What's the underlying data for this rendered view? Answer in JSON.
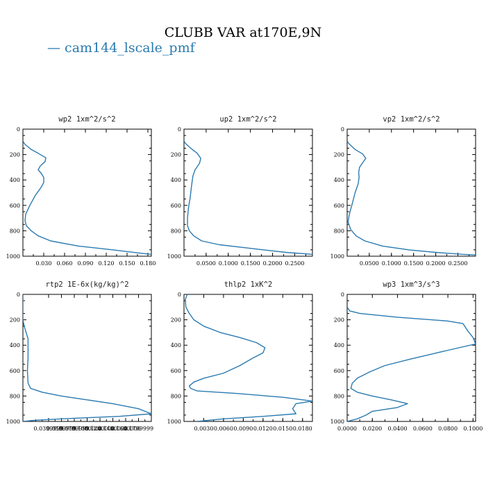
{
  "title": "CLUBB VAR at170E,9N",
  "legend": {
    "label": "cam144_lscale_pmf",
    "color": "#2a7ab0"
  },
  "chart_data": [
    {
      "type": "line",
      "title": "wp2  1xm^2/s^2",
      "xlim": [
        0,
        0.185
      ],
      "ylim": [
        0,
        1000
      ],
      "y_inverted": true,
      "xticks": [
        0.03,
        0.06,
        0.09,
        0.12,
        0.15,
        0.18
      ],
      "xtick_labels": [
        "0.030",
        "0.060",
        "0.090",
        "0.120",
        "0.150",
        "0.180"
      ],
      "yticks": [
        0,
        200,
        400,
        600,
        800,
        1000
      ],
      "series": [
        {
          "x": [
            0.0,
            0.003,
            0.012,
            0.022,
            0.033,
            0.032,
            0.025,
            0.022,
            0.026,
            0.03,
            0.03,
            0.026,
            0.018,
            0.01,
            0.004,
            0.003,
            0.005,
            0.012,
            0.022,
            0.04,
            0.08,
            0.13,
            0.175,
            0.185
          ],
          "y": [
            95,
            120,
            160,
            190,
            225,
            255,
            290,
            320,
            345,
            380,
            420,
            460,
            520,
            600,
            670,
            720,
            760,
            800,
            840,
            880,
            920,
            950,
            980,
            985
          ]
        }
      ]
    },
    {
      "type": "line",
      "title": "up2  1xm^2/s^2",
      "xlim": [
        0,
        0.29
      ],
      "ylim": [
        0,
        1000
      ],
      "y_inverted": true,
      "xticks": [
        0.05,
        0.1,
        0.15,
        0.2,
        0.25
      ],
      "xtick_labels": [
        "0.0500",
        "0.1000",
        "0.1500",
        "0.2000",
        "0.2500"
      ],
      "yticks": [
        0,
        200,
        400,
        600,
        800,
        1000
      ],
      "series": [
        {
          "x": [
            0.0,
            0.004,
            0.015,
            0.03,
            0.038,
            0.035,
            0.025,
            0.02,
            0.017,
            0.014,
            0.01,
            0.008,
            0.008,
            0.012,
            0.022,
            0.04,
            0.08,
            0.13,
            0.18,
            0.23,
            0.29
          ],
          "y": [
            95,
            115,
            150,
            190,
            230,
            270,
            320,
            370,
            450,
            540,
            620,
            700,
            760,
            800,
            840,
            880,
            910,
            930,
            950,
            970,
            985
          ]
        }
      ]
    },
    {
      "type": "line",
      "title": "vp2  1xm^2/s^2",
      "xlim": [
        0,
        0.29
      ],
      "ylim": [
        0,
        1000
      ],
      "y_inverted": true,
      "xticks": [
        0.05,
        0.1,
        0.15,
        0.2,
        0.25
      ],
      "xtick_labels": [
        "0.0500",
        "0.1000",
        "0.1500",
        "0.2000",
        "0.2500"
      ],
      "yticks": [
        0,
        200,
        400,
        600,
        800,
        1000
      ],
      "series": [
        {
          "x": [
            0.0,
            0.004,
            0.018,
            0.035,
            0.042,
            0.035,
            0.028,
            0.026,
            0.027,
            0.025,
            0.018,
            0.012,
            0.005,
            0.002,
            0.008,
            0.02,
            0.04,
            0.08,
            0.14,
            0.2,
            0.26,
            0.29
          ],
          "y": [
            95,
            115,
            160,
            195,
            230,
            265,
            300,
            340,
            380,
            430,
            500,
            580,
            670,
            730,
            790,
            840,
            880,
            920,
            950,
            970,
            985,
            990
          ]
        }
      ]
    },
    {
      "type": "line",
      "title": "rtp2  1E-6x(kg/kg)^2",
      "xlim": [
        0,
        0.2
      ],
      "ylim": [
        0,
        1000
      ],
      "y_inverted": true,
      "xticks": [
        0.04,
        0.06,
        0.08,
        0.1,
        0.12,
        0.14,
        0.16,
        0.18
      ],
      "xtick_labels": [
        "0.0399999",
        "0.0599999",
        "0.0799999",
        "0.1000000",
        "0.1200000",
        "0.1400000",
        "0.1600000",
        "0.1799999"
      ],
      "yticks": [
        0,
        200,
        400,
        600,
        800,
        1000
      ],
      "series": [
        {
          "x": [
            0.0,
            0.0,
            0.0,
            0.002,
            0.005,
            0.008,
            0.008,
            0.007,
            0.008,
            0.012,
            0.03,
            0.06,
            0.1,
            0.14,
            0.18,
            0.2,
            0.15,
            0.08,
            0.02,
            0.0
          ],
          "y": [
            0,
            100,
            200,
            250,
            300,
            350,
            500,
            600,
            700,
            740,
            770,
            800,
            830,
            860,
            900,
            940,
            960,
            975,
            990,
            1000
          ]
        }
      ]
    },
    {
      "type": "line",
      "title": "thlp2  1xK^2",
      "xlim": [
        0,
        0.0195
      ],
      "ylim": [
        0,
        1000
      ],
      "y_inverted": true,
      "xticks": [
        0.003,
        0.006,
        0.009,
        0.012,
        0.015,
        0.018
      ],
      "xtick_labels": [
        "0.0030",
        "0.0060",
        "0.0090",
        "0.0120",
        "0.0150",
        "0.0180"
      ],
      "yticks": [
        0,
        200,
        400,
        600,
        800,
        1000
      ],
      "series": [
        {
          "x": [
            0.0005,
            0.0002,
            0.0003,
            0.0008,
            0.0015,
            0.003,
            0.0055,
            0.0085,
            0.011,
            0.0123,
            0.012,
            0.0105,
            0.0085,
            0.006,
            0.003,
            0.0015,
            0.0008,
            0.001,
            0.002,
            0.008,
            0.015,
            0.0195,
            0.017,
            0.0165,
            0.017,
            0.012,
            0.006,
            0.002
          ],
          "y": [
            0,
            40,
            100,
            150,
            200,
            250,
            300,
            340,
            380,
            420,
            460,
            500,
            560,
            620,
            660,
            690,
            720,
            740,
            760,
            780,
            810,
            840,
            860,
            900,
            940,
            960,
            980,
            1000
          ]
        }
      ]
    },
    {
      "type": "line",
      "title": "wp3  1xm^3/s^3",
      "xlim": [
        0,
        0.102
      ],
      "ylim": [
        0,
        1000
      ],
      "y_inverted": true,
      "xticks": [
        0.0,
        0.02,
        0.04,
        0.06,
        0.08,
        0.1
      ],
      "xtick_labels": [
        "0.0000",
        "0.0200",
        "0.0400",
        "0.0600",
        "0.0800",
        "0.1000"
      ],
      "yticks": [
        0,
        200,
        400,
        600,
        800,
        1000
      ],
      "series": [
        {
          "x": [
            0.0,
            0.002,
            0.01,
            0.04,
            0.08,
            0.092,
            0.096,
            0.1,
            0.102,
            0.08,
            0.05,
            0.03,
            0.018,
            0.008,
            0.004,
            0.003,
            0.008,
            0.02,
            0.035,
            0.048,
            0.04,
            0.02,
            0.015,
            0.008,
            0.0
          ],
          "y": [
            100,
            130,
            150,
            180,
            210,
            230,
            290,
            340,
            390,
            440,
            510,
            560,
            610,
            660,
            700,
            740,
            770,
            800,
            830,
            860,
            890,
            920,
            950,
            980,
            1000
          ]
        }
      ]
    }
  ]
}
